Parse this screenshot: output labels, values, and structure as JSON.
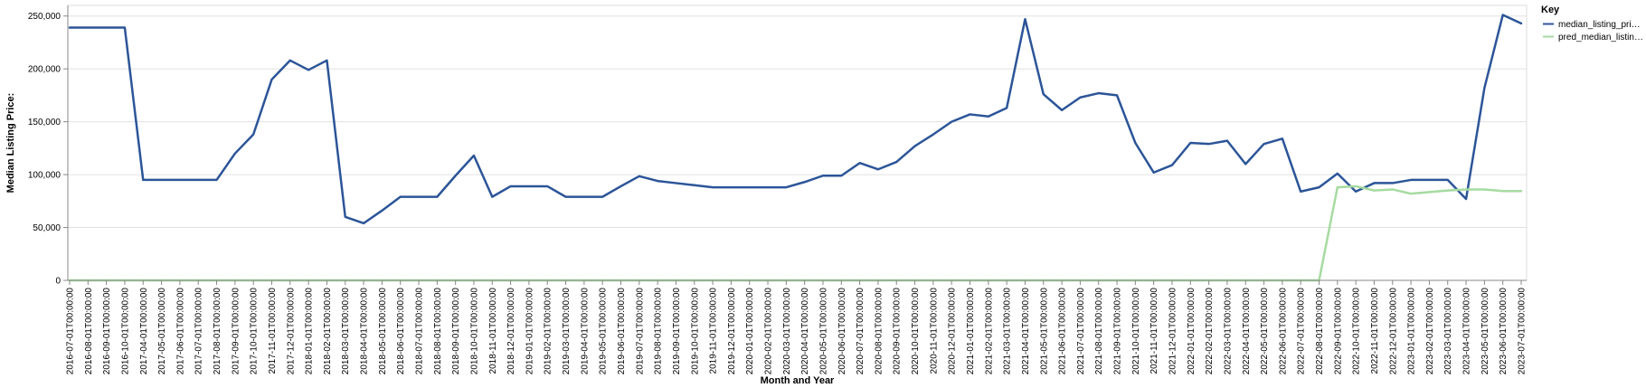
{
  "chart_data": {
    "type": "line",
    "xlabel": "Month and Year",
    "ylabel": "Median Listing Price:",
    "ylim": [
      0,
      260000
    ],
    "yticks": [
      0,
      50000,
      100000,
      150000,
      200000,
      250000
    ],
    "ytick_labels": [
      "0",
      "50,000",
      "100,000",
      "150,000",
      "200,000",
      "250,000"
    ],
    "grid": true,
    "legend": {
      "title": "Key",
      "position": "top-right",
      "labels": [
        "median_listing_pri…",
        "pred_median_listin…"
      ]
    },
    "x": [
      "2016-07-01T00:00:00",
      "2016-08-01T00:00:00",
      "2016-09-01T00:00:00",
      "2016-10-01T00:00:00",
      "2017-04-01T00:00:00",
      "2017-05-01T00:00:00",
      "2017-06-01T00:00:00",
      "2017-07-01T00:00:00",
      "2017-08-01T00:00:00",
      "2017-09-01T00:00:00",
      "2017-10-01T00:00:00",
      "2017-11-01T00:00:00",
      "2017-12-01T00:00:00",
      "2018-01-01T00:00:00",
      "2018-02-01T00:00:00",
      "2018-03-01T00:00:00",
      "2018-04-01T00:00:00",
      "2018-05-01T00:00:00",
      "2018-06-01T00:00:00",
      "2018-07-01T00:00:00",
      "2018-08-01T00:00:00",
      "2018-09-01T00:00:00",
      "2018-10-01T00:00:00",
      "2018-11-01T00:00:00",
      "2018-12-01T00:00:00",
      "2019-01-01T00:00:00",
      "2019-02-01T00:00:00",
      "2019-03-01T00:00:00",
      "2019-04-01T00:00:00",
      "2019-05-01T00:00:00",
      "2019-06-01T00:00:00",
      "2019-07-01T00:00:00",
      "2019-08-01T00:00:00",
      "2019-09-01T00:00:00",
      "2019-10-01T00:00:00",
      "2019-11-01T00:00:00",
      "2019-12-01T00:00:00",
      "2020-01-01T00:00:00",
      "2020-02-01T00:00:00",
      "2020-03-01T00:00:00",
      "2020-04-01T00:00:00",
      "2020-05-01T00:00:00",
      "2020-06-01T00:00:00",
      "2020-07-01T00:00:00",
      "2020-08-01T00:00:00",
      "2020-09-01T00:00:00",
      "2020-10-01T00:00:00",
      "2020-11-01T00:00:00",
      "2020-12-01T00:00:00",
      "2021-01-01T00:00:00",
      "2021-02-01T00:00:00",
      "2021-03-01T00:00:00",
      "2021-04-01T00:00:00",
      "2021-05-01T00:00:00",
      "2021-06-01T00:00:00",
      "2021-07-01T00:00:00",
      "2021-08-01T00:00:00",
      "2021-09-01T00:00:00",
      "2021-10-01T00:00:00",
      "2021-11-01T00:00:00",
      "2021-12-01T00:00:00",
      "2022-01-01T00:00:00",
      "2022-02-01T00:00:00",
      "2022-03-01T00:00:00",
      "2022-04-01T00:00:00",
      "2022-05-01T00:00:00",
      "2022-06-01T00:00:00",
      "2022-07-01T00:00:00",
      "2022-08-01T00:00:00",
      "2022-09-01T00:00:00",
      "2022-10-01T00:00:00",
      "2022-11-01T00:00:00",
      "2022-12-01T00:00:00",
      "2023-01-01T00:00:00",
      "2023-02-01T00:00:00",
      "2023-03-01T00:00:00",
      "2023-04-01T00:00:00",
      "2023-05-01T00:00:00",
      "2023-06-01T00:00:00",
      "2023-07-01T00:00:00"
    ],
    "series": [
      {
        "name": "median_listing_pri…",
        "color": "#2c5598",
        "values": [
          239000,
          239000,
          239000,
          239000,
          95000,
          95000,
          95000,
          95000,
          95000,
          120000,
          138000,
          190000,
          208000,
          199000,
          208000,
          60000,
          54000,
          66000,
          79000,
          79000,
          79000,
          99000,
          118000,
          79000,
          89000,
          89000,
          89000,
          79000,
          79000,
          79000,
          89000,
          98500,
          94000,
          92000,
          90000,
          88000,
          88000,
          88000,
          88000,
          88000,
          93000,
          99000,
          99000,
          111000,
          105000,
          112000,
          127000,
          138000,
          150000,
          157000,
          155000,
          163000,
          247000,
          176000,
          161000,
          173000,
          177000,
          175000,
          130000,
          102000,
          109000,
          130000,
          129000,
          132000,
          110000,
          129000,
          134000,
          84000,
          88000,
          101000,
          84000,
          92000,
          92000,
          95000,
          95000,
          95000,
          77000,
          182000,
          251000,
          243000
        ]
      },
      {
        "name": "pred_median_listin…",
        "color": "#a6dba0",
        "values": [
          0,
          0,
          0,
          0,
          0,
          0,
          0,
          0,
          0,
          0,
          0,
          0,
          0,
          0,
          0,
          0,
          0,
          0,
          0,
          0,
          0,
          0,
          0,
          0,
          0,
          0,
          0,
          0,
          0,
          0,
          0,
          0,
          0,
          0,
          0,
          0,
          0,
          0,
          0,
          0,
          0,
          0,
          0,
          0,
          0,
          0,
          0,
          0,
          0,
          0,
          0,
          0,
          0,
          0,
          0,
          0,
          0,
          0,
          0,
          0,
          0,
          0,
          0,
          0,
          0,
          0,
          0,
          0,
          0,
          88000,
          89000,
          85000,
          86000,
          82000,
          83500,
          85000,
          86000,
          86000,
          84500,
          84500
        ]
      }
    ]
  }
}
